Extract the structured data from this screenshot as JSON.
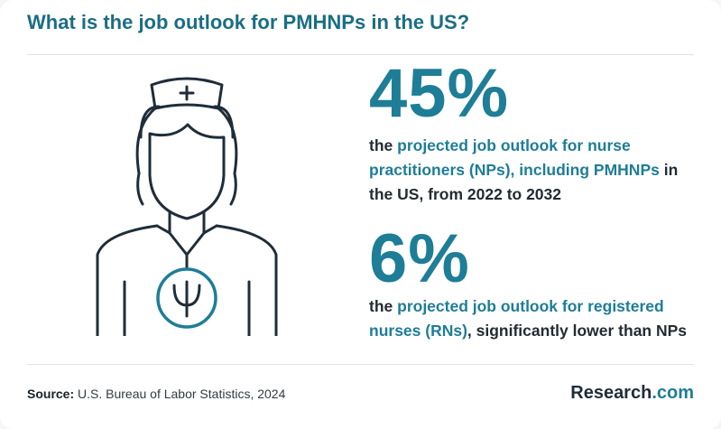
{
  "header": {
    "title": "What is the job outlook for PMHNPs in the US?"
  },
  "illustration": {
    "icon": "nurse-with-psi-symbol-icon",
    "accent_color": "#1e7d97",
    "line_color": "#1f2d3a"
  },
  "stats": [
    {
      "value": "45%",
      "lead": "the ",
      "highlight": "projected job outlook for nurse practitioners (NPs), including PMHNPs",
      "tail": " in the US, from 2022 to 2032"
    },
    {
      "value": "6%",
      "lead": "the ",
      "highlight": "projected job outlook for registered nurses (RNs)",
      "tail": ", significantly lower than NPs"
    }
  ],
  "footer": {
    "source_label": "Source:",
    "source_text": " U.S. Bureau of Labor Statistics, 2024",
    "brand_name": "Research",
    "brand_suffix": ".com"
  },
  "colors": {
    "accent": "#1e7d97",
    "title": "#1a6d84",
    "text": "#242b33"
  }
}
